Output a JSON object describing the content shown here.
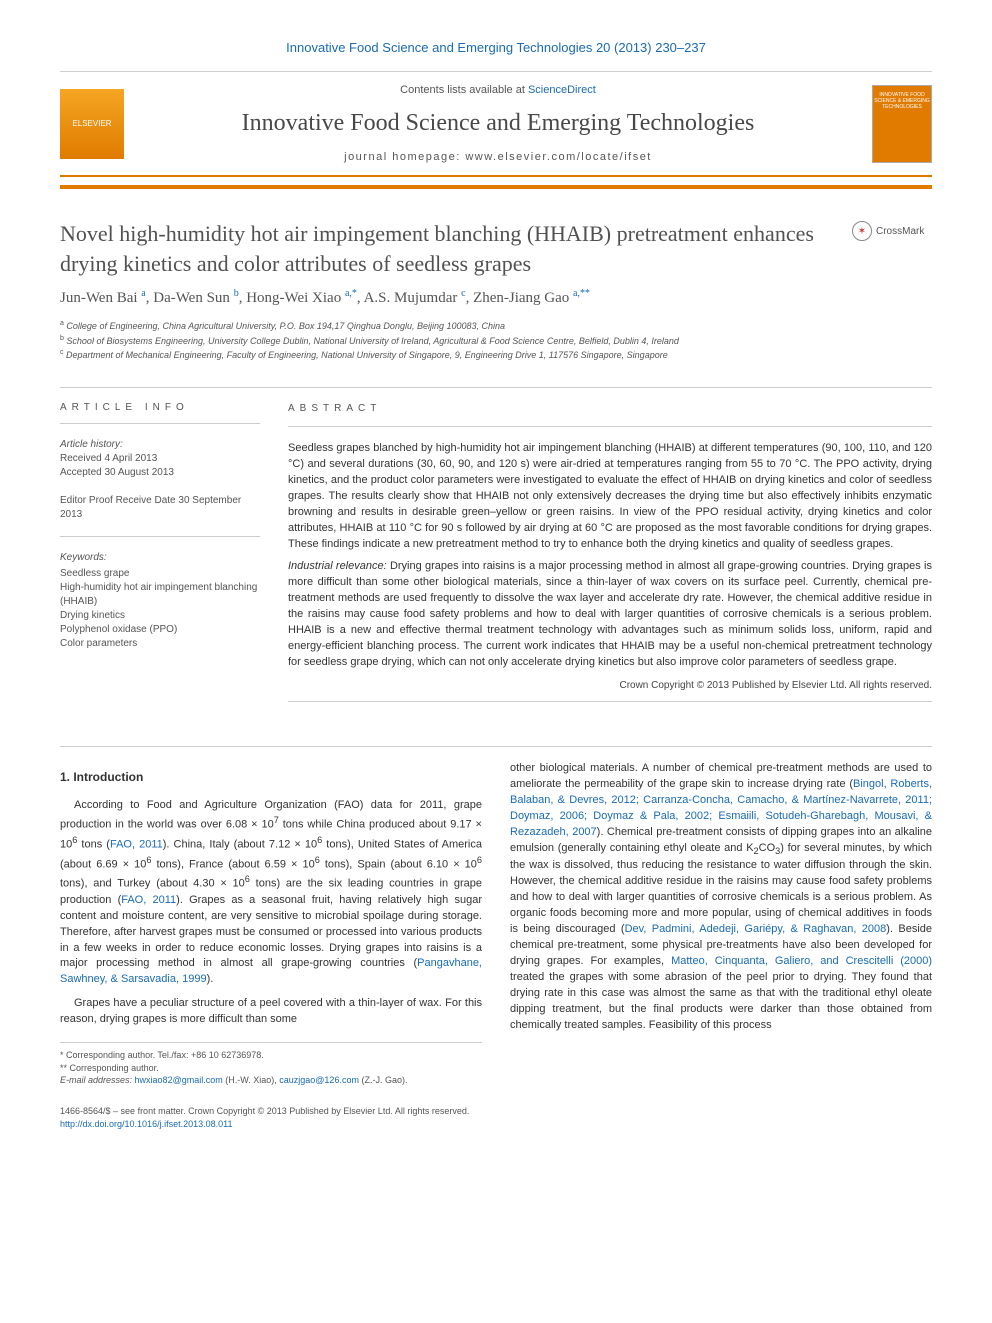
{
  "top_citation": "Innovative Food Science and Emerging Technologies 20 (2013) 230–237",
  "header": {
    "contents_prefix": "Contents lists available at ",
    "contents_link": "ScienceDirect",
    "journal_title": "Innovative Food Science and Emerging Technologies",
    "homepage_prefix": "journal homepage: ",
    "homepage_url": "www.elsevier.com/locate/ifset",
    "elsevier_label": "ELSEVIER",
    "cover_text": "INNOVATIVE FOOD SCIENCE & EMERGING TECHNOLOGIES"
  },
  "crossmark": "CrossMark",
  "title": "Novel high-humidity hot air impingement blanching (HHAIB) pretreatment enhances drying kinetics and color attributes of seedless grapes",
  "authors_html": "Jun-Wen Bai <sup>a</sup>, Da-Wen Sun <sup>b</sup>, Hong-Wei Xiao <sup>a,*</sup>, A.S. Mujumdar <sup>c</sup>, Zhen-Jiang Gao <sup>a,**</sup>",
  "affiliations": {
    "a": "College of Engineering, China Agricultural University, P.O. Box 194,17 Qinghua Donglu, Beijing 100083, China",
    "b": "School of Biosystems Engineering, University College Dublin, National University of Ireland, Agricultural & Food Science Centre, Belfield, Dublin 4, Ireland",
    "c": "Department of Mechanical Engineering, Faculty of Engineering, National University of Singapore, 9, Engineering Drive 1, 117576 Singapore, Singapore"
  },
  "article_info": {
    "heading": "article info",
    "history_label": "Article history:",
    "received": "Received 4 April 2013",
    "accepted": "Accepted 30 August 2013",
    "editor_proof": "Editor Proof Receive Date 30 September 2013",
    "keywords_label": "Keywords:",
    "keywords": [
      "Seedless grape",
      "High-humidity hot air impingement blanching (HHAIB)",
      "Drying kinetics",
      "Polyphenol oxidase (PPO)",
      "Color parameters"
    ]
  },
  "abstract": {
    "heading": "abstract",
    "p1": "Seedless grapes blanched by high-humidity hot air impingement blanching (HHAIB) at different temperatures (90, 100, 110, and 120 °C) and several durations (30, 60, 90, and 120 s) were air-dried at temperatures ranging from 55 to 70 °C. The PPO activity, drying kinetics, and the product color parameters were investigated to evaluate the effect of HHAIB on drying kinetics and color of seedless grapes. The results clearly show that HHAIB not only extensively decreases the drying time but also effectively inhibits enzymatic browning and results in desirable green–yellow or green raisins. In view of the PPO residual activity, drying kinetics and color attributes, HHAIB at 110 °C for 90 s followed by air drying at 60 °C are proposed as the most favorable conditions for drying grapes. These findings indicate a new pretreatment method to try to enhance both the drying kinetics and quality of seedless grapes.",
    "p2_lead": "Industrial relevance:",
    "p2": "Drying grapes into raisins is a major processing method in almost all grape-growing countries. Drying grapes is more difficult than some other biological materials, since a thin-layer of wax covers on its surface peel. Currently, chemical pre-treatment methods are used frequently to dissolve the wax layer and accelerate dry rate. However, the chemical additive residue in the raisins may cause food safety problems and how to deal with larger quantities of corrosive chemicals is a serious problem. HHAIB is a new and effective thermal treatment technology with advantages such as minimum solids loss, uniform, rapid and energy-efficient blanching process. The current work indicates that HHAIB may be a useful non-chemical pretreatment technology for seedless grape drying, which can not only accelerate drying kinetics but also improve color parameters of seedless grape.",
    "copyright": "Crown Copyright © 2013 Published by Elsevier Ltd. All rights reserved."
  },
  "body": {
    "intro_heading": "1. Introduction",
    "left_p1_a": "According to Food and Agriculture Organization (FAO) data for 2011, grape production in the world was over 6.08 × 10",
    "left_p1_exp1": "7",
    "left_p1_b": " tons while China produced about 9.17 × 10",
    "left_p1_exp2": "6",
    "left_p1_c": " tons (",
    "left_p1_ref1": "FAO, 2011",
    "left_p1_d": "). China, Italy (about 7.12 × 10",
    "left_p1_exp3": "6",
    "left_p1_e": " tons), United States of America (about 6.69 × 10",
    "left_p1_exp4": "6",
    "left_p1_f": " tons), France (about 6.59 × 10",
    "left_p1_exp5": "6",
    "left_p1_g": " tons), Spain (about 6.10 × 10",
    "left_p1_exp6": "6",
    "left_p1_h": " tons), and Turkey (about 4.30 × 10",
    "left_p1_exp7": "6",
    "left_p1_i": " tons) are the six leading countries in grape production (",
    "left_p1_ref2": "FAO, 2011",
    "left_p1_j": "). Grapes as a seasonal fruit, having relatively high sugar content and moisture content, are very sensitive to microbial spoilage during storage. Therefore, after harvest grapes must be consumed or processed into various products in a few weeks in order to reduce economic losses. Drying grapes into raisins is a major processing method in almost all grape-growing countries (",
    "left_p1_ref3": "Pangavhane, Sawhney, & Sarsavadia, 1999",
    "left_p1_k": ").",
    "left_p2": "Grapes have a peculiar structure of a peel covered with a thin-layer of wax. For this reason, drying grapes is more difficult than some",
    "right_p1_a": "other biological materials. A number of chemical pre-treatment methods are used to ameliorate the permeability of the grape skin to increase drying rate (",
    "right_p1_ref1": "Bingol, Roberts, Balaban, & Devres, 2012; Carranza-Concha, Camacho, & Martínez-Navarrete, 2011; Doymaz, 2006; Doymaz & Pala, 2002; Esmaiili, Sotudeh-Gharebagh, Mousavi, & Rezazadeh, 2007",
    "right_p1_b": "). Chemical pre-treatment consists of dipping grapes into an alkaline emulsion (generally containing ethyl oleate and K",
    "right_p1_sub": "2",
    "right_p1_c": "CO",
    "right_p1_sub2": "3",
    "right_p1_d": ") for several minutes, by which the wax is dissolved, thus reducing the resistance to water diffusion through the skin. However, the chemical additive residue in the raisins may cause food safety problems and how to deal with larger quantities of corrosive chemicals is a serious problem. As organic foods becoming more and more popular, using of chemical additives in foods is being discouraged (",
    "right_p1_ref2": "Dev, Padmini, Adedeji, Gariépy, & Raghavan, 2008",
    "right_p1_e": "). Beside chemical pre-treatment, some physical pre-treatments have also been developed for drying grapes. For examples, ",
    "right_p1_ref3": "Matteo, Cinquanta, Galiero, and Crescitelli (2000)",
    "right_p1_f": " treated the grapes with some abrasion of the peel prior to drying. They found that drying rate in this case was almost the same as that with the traditional ethyl oleate dipping treatment, but the final products were darker than those obtained from chemically treated samples. Feasibility of this process"
  },
  "footnotes": {
    "star1_label": "*",
    "star1_text": "Corresponding author. Tel./fax: +86 10 62736978.",
    "star2_label": "**",
    "star2_text": "Corresponding author.",
    "email_label": "E-mail addresses:",
    "email1": "hwxiao82@gmail.com",
    "email1_who": "(H.-W. Xiao),",
    "email2": "cauzjgao@126.com",
    "email2_who": "(Z.-J. Gao)."
  },
  "footer": {
    "issn_line": "1466-8564/$ – see front matter. Crown Copyright © 2013 Published by Elsevier Ltd. All rights reserved.",
    "doi": "http://dx.doi.org/10.1016/j.ifset.2013.08.011"
  },
  "colors": {
    "link": "#1a6bb3",
    "orange": "#e07b00",
    "text": "#333333",
    "muted": "#555555",
    "title_grey": "#515151"
  }
}
